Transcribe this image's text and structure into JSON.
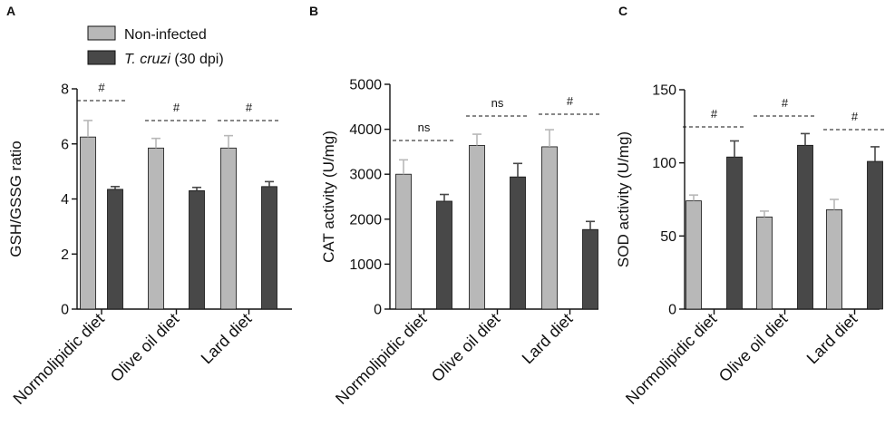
{
  "colors": {
    "non_infected": "#b8b8b8",
    "infected": "#484848",
    "axis": "#111111"
  },
  "legend": {
    "items": [
      {
        "label": "Non-infected",
        "italic_part": "",
        "suffix": ""
      },
      {
        "label": "",
        "italic_part": "T. cruzi",
        "suffix": " (30 dpi)"
      }
    ]
  },
  "chart_data": [
    {
      "type": "bar",
      "panel": "A",
      "ylabel": "GSH/GSSG ratio",
      "ylim": [
        0,
        8
      ],
      "yticks": [
        0,
        2,
        4,
        6,
        8
      ],
      "categories": [
        "Normolipidic diet",
        "Olive oil diet",
        "Lard diet"
      ],
      "series": [
        {
          "name": "Non-infected",
          "values": [
            6.25,
            5.85,
            5.85
          ],
          "errors": [
            0.6,
            0.35,
            0.45
          ]
        },
        {
          "name": "T. cruzi (30 dpi)",
          "values": [
            4.35,
            4.3,
            4.45
          ],
          "errors": [
            0.1,
            0.12,
            0.18
          ]
        }
      ],
      "significance": [
        "#",
        "#",
        "#"
      ]
    },
    {
      "type": "bar",
      "panel": "B",
      "ylabel": "CAT activity (U/mg)",
      "ylim": [
        0,
        5000
      ],
      "yticks": [
        0,
        1000,
        2000,
        3000,
        4000,
        5000
      ],
      "categories": [
        "Normolipidic diet",
        "Olive oil diet",
        "Lard diet"
      ],
      "series": [
        {
          "name": "Non-infected",
          "values": [
            3000,
            3640,
            3610
          ],
          "errors": [
            320,
            250,
            380
          ]
        },
        {
          "name": "T. cruzi (30 dpi)",
          "values": [
            2400,
            2940,
            1770
          ],
          "errors": [
            150,
            300,
            180
          ]
        }
      ],
      "significance": [
        "ns",
        "ns",
        "#"
      ]
    },
    {
      "type": "bar",
      "panel": "C",
      "ylabel": "SOD activity (U/mg)",
      "ylim": [
        0,
        150
      ],
      "yticks": [
        0,
        50,
        100,
        150
      ],
      "categories": [
        "Normolipidic diet",
        "Olive oil diet",
        "Lard diet"
      ],
      "series": [
        {
          "name": "Non-infected",
          "values": [
            74,
            63,
            68
          ],
          "errors": [
            4,
            4,
            7
          ]
        },
        {
          "name": "T. cruzi (30 dpi)",
          "values": [
            104,
            112,
            101
          ],
          "errors": [
            11,
            8,
            10
          ]
        }
      ],
      "significance": [
        "#",
        "#",
        "#"
      ]
    }
  ]
}
